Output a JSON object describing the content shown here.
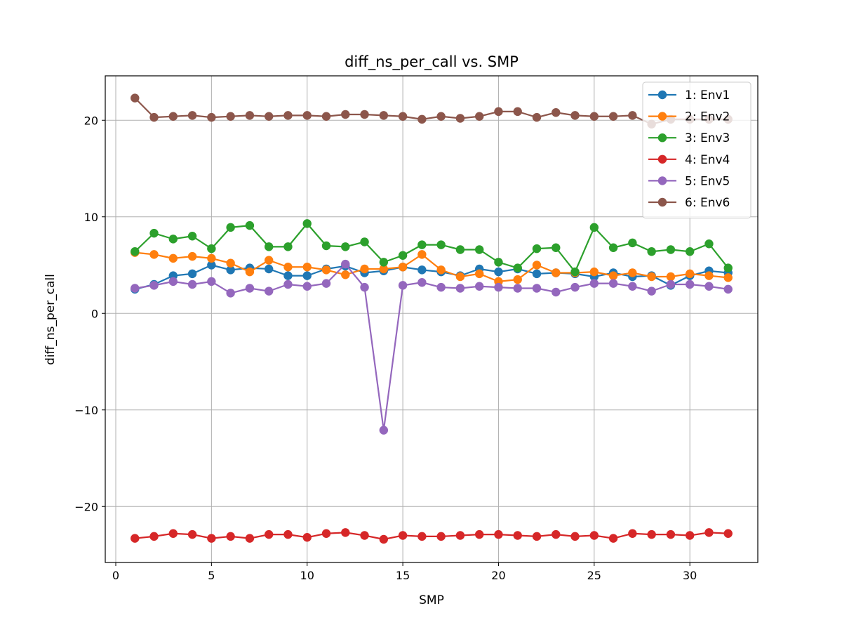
{
  "chart_data": {
    "type": "line",
    "title": "diff_ns_per_call vs. SMP",
    "xlabel": "SMP",
    "ylabel": "diff_ns_per_call",
    "xlim": [
      -0.55,
      33.55
    ],
    "ylim": [
      -25.8,
      24.6
    ],
    "xticks": [
      0,
      5,
      10,
      15,
      20,
      25,
      30
    ],
    "yticks": [
      -20,
      -10,
      0,
      10,
      20
    ],
    "grid": true,
    "legend_position": "top-right",
    "x": [
      1,
      2,
      3,
      4,
      5,
      6,
      7,
      8,
      9,
      10,
      11,
      12,
      13,
      14,
      15,
      16,
      17,
      18,
      19,
      20,
      21,
      22,
      23,
      24,
      25,
      26,
      27,
      28,
      29,
      30,
      31,
      32
    ],
    "series": [
      {
        "name": "1: Env1",
        "color": "#1f77b4",
        "values": [
          2.5,
          3.0,
          3.9,
          4.1,
          5.0,
          4.5,
          4.7,
          4.6,
          3.9,
          3.9,
          4.6,
          4.9,
          4.2,
          4.4,
          4.8,
          4.5,
          4.3,
          3.9,
          4.6,
          4.3,
          4.6,
          4.1,
          4.2,
          4.1,
          3.8,
          4.2,
          3.8,
          3.9,
          2.9,
          3.9,
          4.4,
          4.2
        ]
      },
      {
        "name": "2: Env2",
        "color": "#ff7f0e",
        "values": [
          6.3,
          6.1,
          5.7,
          5.9,
          5.7,
          5.2,
          4.3,
          5.5,
          4.8,
          4.8,
          4.5,
          4.0,
          4.6,
          4.6,
          4.8,
          6.1,
          4.5,
          3.8,
          4.1,
          3.3,
          3.5,
          5.0,
          4.2,
          4.2,
          4.3,
          3.9,
          4.2,
          3.8,
          3.8,
          4.1,
          3.9,
          3.7
        ]
      },
      {
        "name": "3: Env3",
        "color": "#2ca02c",
        "values": [
          6.4,
          8.3,
          7.7,
          8.0,
          6.7,
          8.9,
          9.1,
          6.9,
          6.9,
          9.3,
          7.0,
          6.9,
          7.4,
          5.3,
          6.0,
          7.1,
          7.1,
          6.6,
          6.6,
          5.3,
          4.7,
          6.7,
          6.8,
          4.3,
          8.9,
          6.8,
          7.3,
          6.4,
          6.6,
          6.4,
          7.2,
          4.7
        ]
      },
      {
        "name": "4: Env4",
        "color": "#d62728",
        "values": [
          -23.3,
          -23.1,
          -22.8,
          -22.9,
          -23.3,
          -23.1,
          -23.3,
          -22.9,
          -22.9,
          -23.2,
          -22.8,
          -22.7,
          -23.0,
          -23.4,
          -23.0,
          -23.1,
          -23.1,
          -23.0,
          -22.9,
          -22.9,
          -23.0,
          -23.1,
          -22.9,
          -23.1,
          -23.0,
          -23.3,
          -22.8,
          -22.9,
          -22.9,
          -23.0,
          -22.7,
          -22.8
        ]
      },
      {
        "name": "5: Env5",
        "color": "#9467bd",
        "values": [
          2.6,
          2.9,
          3.3,
          3.0,
          3.3,
          2.1,
          2.6,
          2.3,
          3.0,
          2.8,
          3.1,
          5.1,
          2.7,
          -12.1,
          2.9,
          3.2,
          2.7,
          2.6,
          2.8,
          2.7,
          2.6,
          2.6,
          2.2,
          2.7,
          3.1,
          3.1,
          2.8,
          2.3,
          3.0,
          3.0,
          2.8,
          2.5
        ]
      },
      {
        "name": "6: Env6",
        "color": "#8c564b",
        "values": [
          22.3,
          20.3,
          20.4,
          20.5,
          20.3,
          20.4,
          20.5,
          20.4,
          20.5,
          20.5,
          20.4,
          20.6,
          20.6,
          20.5,
          20.4,
          20.1,
          20.4,
          20.2,
          20.4,
          20.9,
          20.9,
          20.3,
          20.8,
          20.5,
          20.4,
          20.4,
          20.5,
          19.6,
          20.1,
          20.1,
          20.1,
          20.1
        ]
      }
    ]
  }
}
